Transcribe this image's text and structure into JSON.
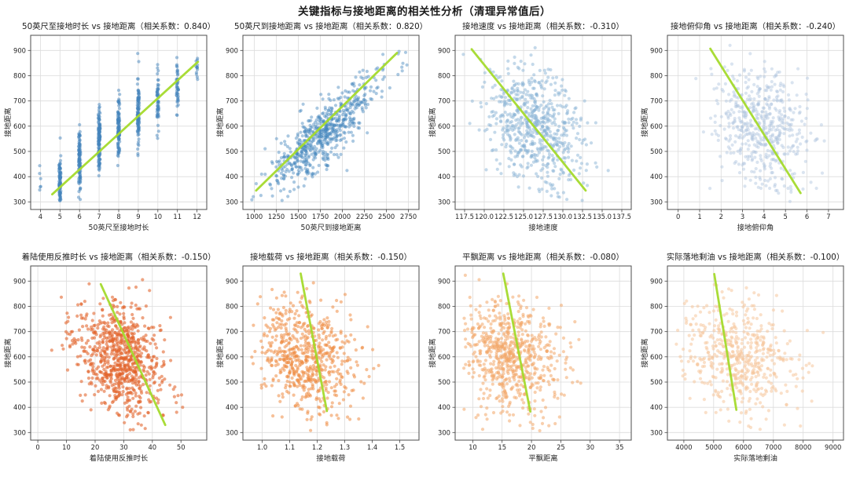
{
  "figure": {
    "title": "关键指标与接地距离的相关性分析（清理异常值后）",
    "background": "#ffffff",
    "grid_color": "#dcdcdc",
    "frame_color": "#4d4d4d",
    "tick_color": "#444444",
    "trend_color": "#a4da2c"
  },
  "chart_data": [
    {
      "type": "scatter",
      "title": "50英尺至接地时长 vs 接地距离（相关系数：0.840）",
      "xlabel": "50英尺至接地时长",
      "ylabel": "接地距离",
      "correlation": 0.84,
      "legend": "none",
      "grid": true,
      "x_domain": [
        3.5,
        12.5
      ],
      "y_domain": [
        270,
        960
      ],
      "xticks": {
        "values": [
          4,
          5,
          6,
          7,
          8,
          9,
          10,
          11,
          12
        ],
        "labels": [
          "4",
          "5",
          "6",
          "7",
          "8",
          "9",
          "10",
          "11",
          "12"
        ]
      },
      "yticks": {
        "values": [
          300,
          400,
          500,
          600,
          700,
          800,
          900
        ],
        "labels": [
          "300",
          "400",
          "500",
          "600",
          "700",
          "800",
          "900"
        ]
      },
      "point_color": "#4384bc",
      "point_opacity": 0.5,
      "trend": [
        4.6,
        330,
        12.05,
        855
      ],
      "seed": 101,
      "dist": {
        "kind": "discrete",
        "x_values": [
          4,
          5,
          6,
          7,
          8,
          9,
          10,
          11,
          12
        ],
        "counts": [
          6,
          95,
          105,
          125,
          115,
          105,
          55,
          45,
          13
        ],
        "y_means": [
          390,
          385,
          470,
          545,
          590,
          650,
          705,
          765,
          840
        ],
        "y_stds": [
          60,
          52,
          62,
          65,
          65,
          70,
          68,
          60,
          40
        ],
        "x_jitter": 0.05,
        "y_clip": [
          298,
          935
        ]
      }
    },
    {
      "type": "scatter",
      "title": "50英尺到接地距离 vs 接地距离（相关系数：0.820）",
      "xlabel": "50英尺到接地距离",
      "ylabel": "接地距离",
      "correlation": 0.82,
      "legend": "none",
      "grid": true,
      "x_domain": [
        870,
        2870
      ],
      "y_domain": [
        270,
        960
      ],
      "xticks": {
        "values": [
          1000,
          1250,
          1500,
          1750,
          2000,
          2250,
          2500,
          2750
        ],
        "labels": [
          "1000",
          "1250",
          "1500",
          "1750",
          "2000",
          "2250",
          "2500",
          "2750"
        ]
      },
      "yticks": {
        "values": [
          300,
          400,
          500,
          600,
          700,
          800,
          900
        ],
        "labels": [
          "300",
          "400",
          "500",
          "600",
          "700",
          "800",
          "900"
        ]
      },
      "point_color": "#4384bc",
      "point_opacity": 0.45,
      "trend": [
        1020,
        345,
        2620,
        890
      ],
      "seed": 102,
      "dist": {
        "kind": "gauss",
        "n": 650,
        "x_mean": 1780,
        "x_std": 320,
        "x_clip": [
          960,
          2770
        ],
        "y_center": 564,
        "slope": 0.3,
        "y_noise": 60,
        "y_clip": [
          300,
          935
        ]
      }
    },
    {
      "type": "scatter",
      "title": "接地速度 vs 接地距离（相关系数：-0.310）",
      "xlabel": "接地速度",
      "ylabel": "接地距离",
      "correlation": -0.31,
      "legend": "none",
      "grid": true,
      "x_domain": [
        116.3,
        138.7
      ],
      "y_domain": [
        270,
        960
      ],
      "xticks": {
        "values": [
          117.5,
          120,
          122.5,
          125,
          127.5,
          130,
          132.5,
          135,
          137.5
        ],
        "labels": [
          "117.5",
          "120.0",
          "122.5",
          "125.0",
          "127.5",
          "130.0",
          "132.5",
          "135.0",
          "137.5"
        ]
      },
      "yticks": {
        "values": [
          300,
          400,
          500,
          600,
          700,
          800,
          900
        ],
        "labels": [
          "300",
          "400",
          "500",
          "600",
          "700",
          "800",
          "900"
        ]
      },
      "point_color": "#8ab4d6",
      "point_opacity": 0.5,
      "trend": [
        118.4,
        905,
        132.9,
        345
      ],
      "seed": 103,
      "dist": {
        "kind": "gauss",
        "n": 650,
        "x_mean": 126.3,
        "x_std": 3.0,
        "x_clip": [
          117,
          138.3
        ],
        "y_center": 600,
        "slope": -13,
        "y_noise": 112,
        "y_clip": [
          300,
          935
        ]
      }
    },
    {
      "type": "scatter",
      "title": "接地俯仰角 vs 接地距离（相关系数：-0.240）",
      "xlabel": "接地俯仰角",
      "ylabel": "接地距离",
      "correlation": -0.24,
      "legend": "none",
      "grid": true,
      "x_domain": [
        -0.5,
        7.7
      ],
      "y_domain": [
        270,
        960
      ],
      "xticks": {
        "values": [
          0,
          1,
          2,
          3,
          4,
          5,
          6,
          7
        ],
        "labels": [
          "0",
          "1",
          "2",
          "3",
          "4",
          "5",
          "6",
          "7"
        ]
      },
      "yticks": {
        "values": [
          300,
          400,
          500,
          600,
          700,
          800,
          900
        ],
        "labels": [
          "300",
          "400",
          "500",
          "600",
          "700",
          "800",
          "900"
        ]
      },
      "point_color": "#aec3de",
      "point_opacity": 0.45,
      "trend": [
        1.5,
        907,
        5.7,
        335
      ],
      "seed": 104,
      "dist": {
        "kind": "gauss",
        "n": 540,
        "x_mean": 3.9,
        "x_std": 1.05,
        "x_clip": [
          0.15,
          7.45
        ],
        "y_center": 600,
        "slope": -27,
        "y_noise": 115,
        "y_clip": [
          300,
          935
        ]
      }
    },
    {
      "type": "scatter",
      "title": "着陆使用反推时长 vs 接地距离（相关系数：-0.150）",
      "xlabel": "着陆使用反推时长",
      "ylabel": "接地距离",
      "correlation": -0.15,
      "legend": "none",
      "grid": true,
      "x_domain": [
        -2.5,
        59
      ],
      "y_domain": [
        270,
        960
      ],
      "xticks": {
        "values": [
          0,
          10,
          20,
          30,
          40,
          50
        ],
        "labels": [
          "0",
          "10",
          "20",
          "30",
          "40",
          "50"
        ]
      },
      "yticks": {
        "values": [
          300,
          400,
          500,
          600,
          700,
          800,
          900
        ],
        "labels": [
          "300",
          "400",
          "500",
          "600",
          "700",
          "800",
          "900"
        ]
      },
      "point_color": "#e2622a",
      "point_opacity": 0.58,
      "trend": [
        22,
        888,
        44.5,
        330
      ],
      "seed": 105,
      "dist": {
        "kind": "gauss",
        "n": 800,
        "x_mean": 29,
        "x_std": 7.5,
        "x_clip": [
          2,
          57
        ],
        "y_center": 595,
        "slope": -4,
        "y_noise": 110,
        "y_clip": [
          300,
          935
        ]
      }
    },
    {
      "type": "scatter",
      "title": "接地载荷 vs 接地距离（相关系数：-0.150）",
      "xlabel": "接地载荷",
      "ylabel": "接地距离",
      "correlation": -0.15,
      "legend": "none",
      "grid": true,
      "x_domain": [
        0.93,
        1.57
      ],
      "y_domain": [
        270,
        960
      ],
      "xticks": {
        "values": [
          1.0,
          1.1,
          1.2,
          1.3,
          1.4,
          1.5
        ],
        "labels": [
          "1.0",
          "1.1",
          "1.2",
          "1.3",
          "1.4",
          "1.5"
        ]
      },
      "yticks": {
        "values": [
          300,
          400,
          500,
          600,
          700,
          800,
          900
        ],
        "labels": [
          "300",
          "400",
          "500",
          "600",
          "700",
          "800",
          "900"
        ]
      },
      "point_color": "#ef8d44",
      "point_opacity": 0.55,
      "trend": [
        1.14,
        930,
        1.235,
        385
      ],
      "seed": 106,
      "dist": {
        "kind": "gauss",
        "n": 640,
        "x_mean": 1.165,
        "x_std": 0.085,
        "x_clip": [
          0.96,
          1.545
        ],
        "y_center": 600,
        "slope": -250,
        "y_noise": 110,
        "y_clip": [
          300,
          935
        ]
      }
    },
    {
      "type": "scatter",
      "title": "平飘距离 vs 接地距离（相关系数：-0.080）",
      "xlabel": "平飘距离",
      "ylabel": "接地距离",
      "correlation": -0.08,
      "legend": "none",
      "grid": true,
      "x_domain": [
        7,
        37
      ],
      "y_domain": [
        270,
        960
      ],
      "xticks": {
        "values": [
          10,
          15,
          20,
          25,
          30,
          35
        ],
        "labels": [
          "10",
          "15",
          "20",
          "25",
          "30",
          "35"
        ]
      },
      "yticks": {
        "values": [
          300,
          400,
          500,
          600,
          700,
          800,
          900
        ],
        "labels": [
          "300",
          "400",
          "500",
          "600",
          "700",
          "800",
          "900"
        ]
      },
      "point_color": "#f3a869",
      "point_opacity": 0.55,
      "trend": [
        15.2,
        930,
        19.8,
        383
      ],
      "seed": 107,
      "dist": {
        "kind": "gauss",
        "n": 700,
        "x_mean": 16.5,
        "x_std": 4.3,
        "x_clip": [
          8.3,
          36
        ],
        "y_center": 600,
        "slope": -6,
        "y_noise": 112,
        "y_clip": [
          300,
          935
        ]
      }
    },
    {
      "type": "scatter",
      "title": "实际落地剩油 vs 接地距离（相关系数：-0.100）",
      "xlabel": "实际落地剩油",
      "ylabel": "接地距离",
      "correlation": -0.1,
      "legend": "none",
      "grid": true,
      "x_domain": [
        3450,
        9350
      ],
      "y_domain": [
        270,
        960
      ],
      "xticks": {
        "values": [
          4000,
          5000,
          6000,
          7000,
          8000,
          9000
        ],
        "labels": [
          "4000",
          "5000",
          "6000",
          "7000",
          "8000",
          "9000"
        ]
      },
      "yticks": {
        "values": [
          300,
          400,
          500,
          600,
          700,
          800,
          900
        ],
        "labels": [
          "300",
          "400",
          "500",
          "600",
          "700",
          "800",
          "900"
        ]
      },
      "point_color": "#f6c79c",
      "point_opacity": 0.55,
      "trend": [
        5020,
        928,
        5760,
        390
      ],
      "seed": 108,
      "dist": {
        "kind": "gauss",
        "n": 540,
        "x_mean": 5850,
        "x_std": 930,
        "x_clip": [
          3700,
          9120
        ],
        "y_center": 600,
        "slope": -0.02,
        "y_noise": 112,
        "y_clip": [
          300,
          935
        ]
      }
    }
  ]
}
